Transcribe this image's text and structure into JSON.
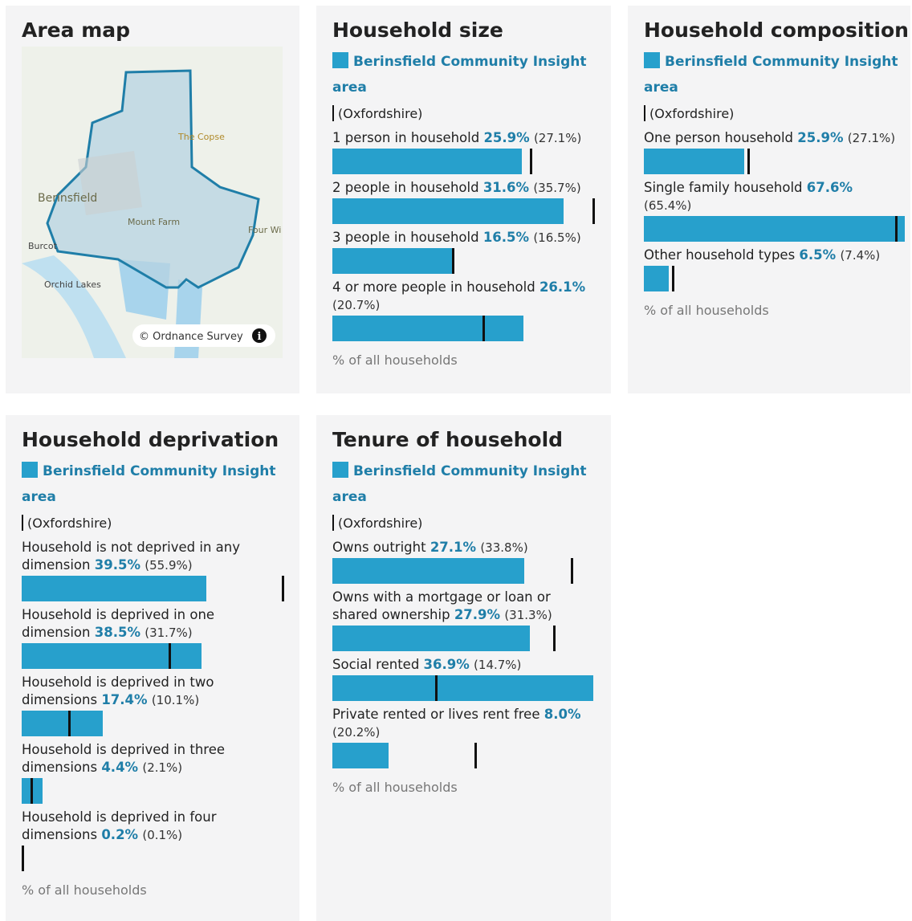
{
  "map": {
    "title": "Area map",
    "labels": [
      "The Copse",
      "Berinsfield",
      "Mount Farm",
      "Four Wi",
      "Burcot",
      "Orchid Lakes"
    ],
    "attribution": "© Ordnance Survey"
  },
  "cards": [
    {
      "title": "Household size",
      "legend": {
        "area": "Berinsfield Community Insight area",
        "comparison": "(Oxfordshire)"
      },
      "rows": [
        {
          "label": "1 person in household",
          "value": 25.9,
          "value_label": "25.9%",
          "comparison": 27.1,
          "comparison_label": "(27.1%)"
        },
        {
          "label": "2 people in household",
          "value": 31.6,
          "value_label": "31.6%",
          "comparison": 35.7,
          "comparison_label": "(35.7%)"
        },
        {
          "label": "3 people in household",
          "value": 16.5,
          "value_label": "16.5%",
          "comparison": 16.5,
          "comparison_label": "(16.5%)"
        },
        {
          "label": "4 or more people in household",
          "value": 26.1,
          "value_label": "26.1%",
          "comparison": 20.7,
          "comparison_label": "(20.7%)"
        }
      ],
      "footnote": "% of all households"
    },
    {
      "title": "Household composition",
      "legend": {
        "area": "Berinsfield Community Insight area",
        "comparison": "(Oxfordshire)"
      },
      "rows": [
        {
          "label": "One person household",
          "value": 25.9,
          "value_label": "25.9%",
          "comparison": 27.1,
          "comparison_label": "(27.1%)"
        },
        {
          "label": "Single family household",
          "value": 67.6,
          "value_label": "67.6%",
          "comparison": 65.4,
          "comparison_label": "(65.4%)"
        },
        {
          "label": "Other household types",
          "value": 6.5,
          "value_label": "6.5%",
          "comparison": 7.4,
          "comparison_label": "(7.4%)"
        }
      ],
      "footnote": "% of all households"
    },
    {
      "title": "Household deprivation",
      "legend": {
        "area": "Berinsfield Community Insight area",
        "comparison": "(Oxfordshire)"
      },
      "rows": [
        {
          "label": "Household is not deprived in any dimension",
          "value": 39.5,
          "value_label": "39.5%",
          "comparison": 55.9,
          "comparison_label": "(55.9%)"
        },
        {
          "label": "Household is deprived in one dimension",
          "value": 38.5,
          "value_label": "38.5%",
          "comparison": 31.7,
          "comparison_label": "(31.7%)"
        },
        {
          "label": "Household is deprived in two dimensions",
          "value": 17.4,
          "value_label": "17.4%",
          "comparison": 10.1,
          "comparison_label": "(10.1%)"
        },
        {
          "label": "Household is deprived in three dimensions",
          "value": 4.4,
          "value_label": "4.4%",
          "comparison": 2.1,
          "comparison_label": "(2.1%)"
        },
        {
          "label": "Household is deprived in four dimensions",
          "value": 0.2,
          "value_label": "0.2%",
          "comparison": 0.1,
          "comparison_label": "(0.1%)"
        }
      ],
      "footnote": "% of all households"
    },
    {
      "title": "Tenure of household",
      "legend": {
        "area": "Berinsfield Community Insight area",
        "comparison": "(Oxfordshire)"
      },
      "rows": [
        {
          "label": "Owns outright",
          "value": 27.1,
          "value_label": "27.1%",
          "comparison": 33.8,
          "comparison_label": "(33.8%)"
        },
        {
          "label": "Owns with a mortgage or loan or shared ownership",
          "value": 27.9,
          "value_label": "27.9%",
          "comparison": 31.3,
          "comparison_label": "(31.3%)"
        },
        {
          "label": "Social rented",
          "value": 36.9,
          "value_label": "36.9%",
          "comparison": 14.7,
          "comparison_label": "(14.7%)"
        },
        {
          "label": "Private rented or lives rent free",
          "value": 8.0,
          "value_label": "8.0%",
          "comparison": 20.2,
          "comparison_label": "(20.2%)"
        }
      ],
      "footnote": "% of all households"
    }
  ]
}
